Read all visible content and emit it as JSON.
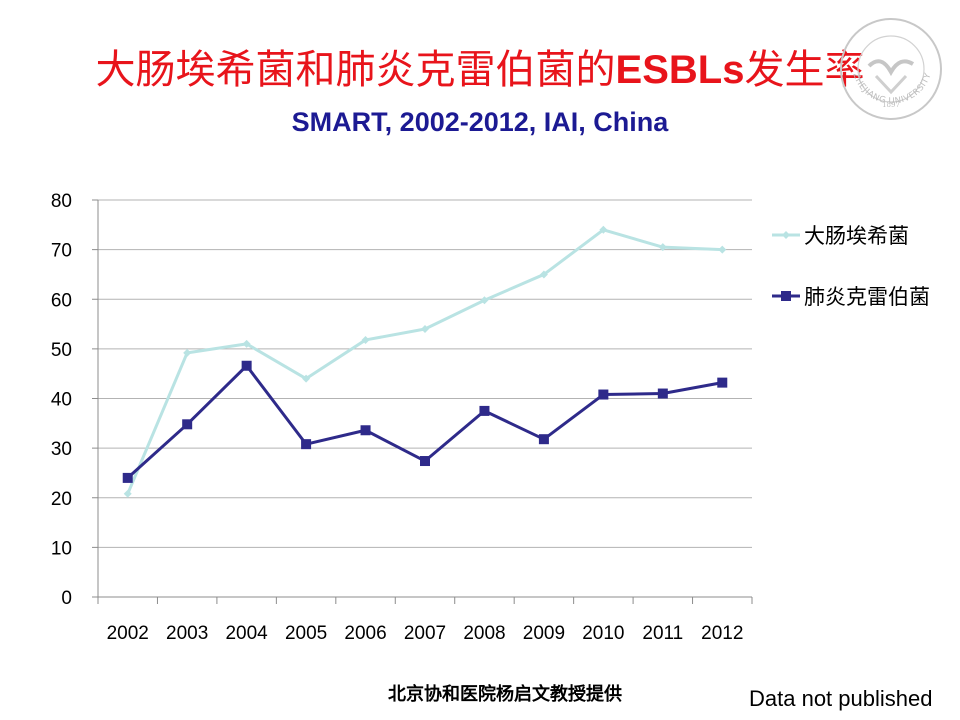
{
  "slide": {
    "title_cn_1": "大肠埃希菌和肺炎克雷伯菌的",
    "title_latin": "ESBLs",
    "title_cn_2": "发生率",
    "subtitle": "SMART, 2002-2012, IAI, China",
    "credit": "北京协和医院杨启文教授提供",
    "note": "Data not published",
    "logo": {
      "icon": "zhejiang-university-seal",
      "text": "ZHEJIANG UNIVERSITY",
      "year": "1897"
    }
  },
  "chart_data": {
    "type": "line",
    "categories": [
      "2002",
      "2003",
      "2004",
      "2005",
      "2006",
      "2007",
      "2008",
      "2009",
      "2010",
      "2011",
      "2012"
    ],
    "ylim": [
      0,
      80
    ],
    "yticks": [
      0,
      10,
      20,
      30,
      40,
      50,
      60,
      70,
      80
    ],
    "grid": true,
    "legend_position": "right",
    "series": [
      {
        "name": "大肠埃希菌",
        "color": "#b9e3e3",
        "marker": "diamond",
        "values": [
          20.8,
          49.2,
          51.0,
          44.0,
          51.8,
          54.0,
          59.8,
          65.0,
          74.0,
          70.5,
          70.0
        ]
      },
      {
        "name": "肺炎克雷伯菌",
        "color": "#2e2a8a",
        "marker": "square",
        "values": [
          24.0,
          34.8,
          46.6,
          30.8,
          33.6,
          27.4,
          37.5,
          31.8,
          40.8,
          41.0,
          43.2
        ]
      }
    ]
  }
}
